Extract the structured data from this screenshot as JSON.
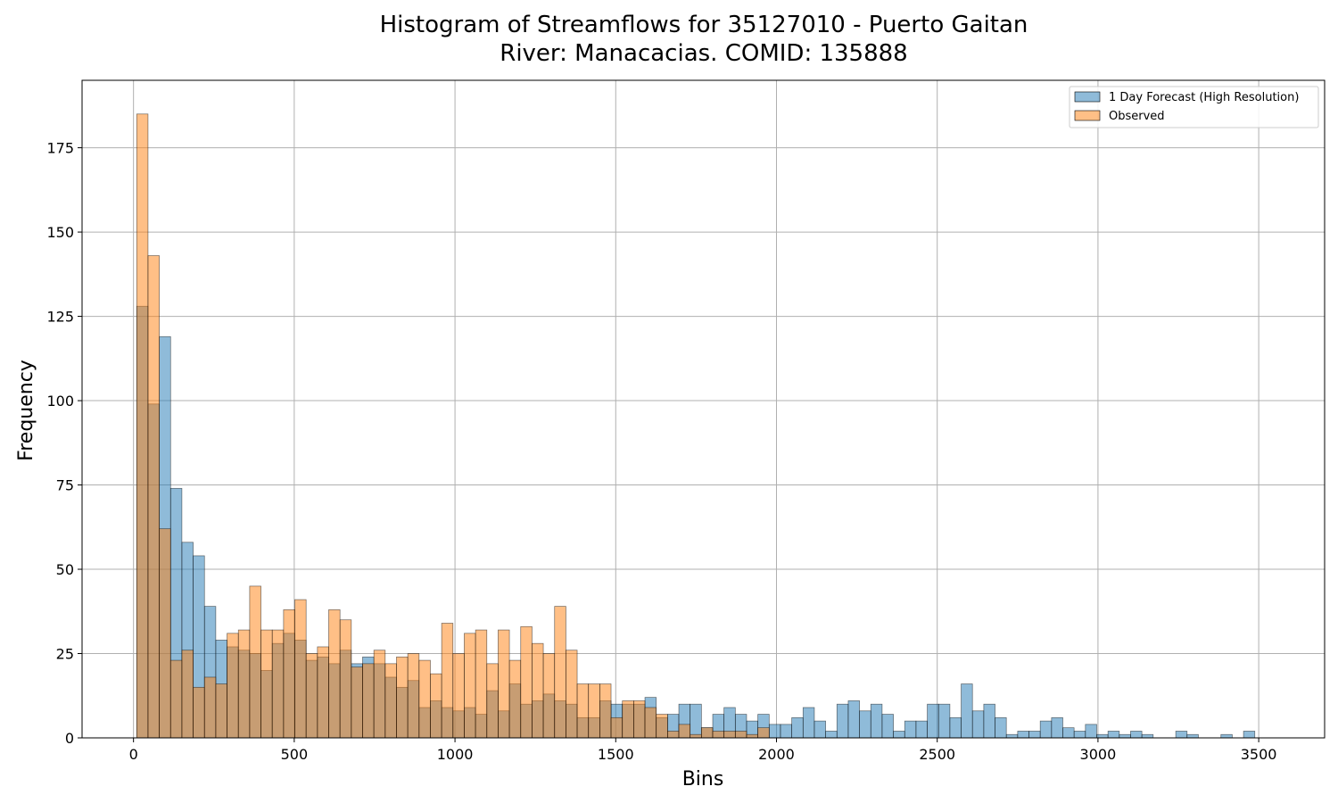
{
  "chart_data": {
    "type": "bar",
    "title": "Histogram of Streamflows for 35127010 - Puerto Gaitan",
    "subtitle": "River: Manacacias. COMID: 135888",
    "xlabel": "Bins",
    "ylabel": "Frequency",
    "xlim": [
      -160,
      3705
    ],
    "ylim": [
      0,
      195
    ],
    "x_ticks": [
      0,
      500,
      1000,
      1500,
      2000,
      2500,
      3000,
      3500
    ],
    "y_ticks": [
      0,
      25,
      50,
      75,
      100,
      125,
      150,
      175
    ],
    "grid": true,
    "legend_position": "top-right",
    "bin_start": 10,
    "bin_width": 35.13,
    "series": [
      {
        "name": "1 Day Forecast (High Resolution)",
        "color": "#1f77b4",
        "values": [
          128,
          99,
          119,
          74,
          58,
          54,
          39,
          29,
          27,
          26,
          25,
          20,
          28,
          31,
          29,
          23,
          24,
          22,
          26,
          22,
          24,
          22,
          18,
          15,
          17,
          9,
          11,
          9,
          8,
          9,
          7,
          14,
          8,
          16,
          10,
          11,
          13,
          11,
          10,
          6,
          6,
          11,
          10,
          10,
          10,
          12,
          6,
          7,
          10,
          10,
          3,
          7,
          9,
          7,
          5,
          7,
          4,
          4,
          6,
          9,
          5,
          2,
          10,
          11,
          8,
          10,
          7,
          2,
          5,
          5,
          10,
          10,
          6,
          16,
          8,
          10,
          6,
          1,
          2,
          2,
          5,
          6,
          3,
          2,
          4,
          1,
          2,
          1,
          2,
          1,
          0,
          0,
          2,
          1,
          0,
          0,
          1,
          0,
          2
        ]
      },
      {
        "name": "Observed",
        "color": "#ff7f0e",
        "values": [
          185,
          143,
          62,
          23,
          26,
          15,
          18,
          16,
          31,
          32,
          45,
          32,
          32,
          38,
          41,
          25,
          27,
          38,
          35,
          21,
          22,
          26,
          22,
          24,
          25,
          23,
          19,
          34,
          25,
          31,
          32,
          22,
          32,
          23,
          33,
          28,
          25,
          39,
          26,
          16,
          16,
          16,
          6,
          11,
          11,
          9,
          7,
          2,
          4,
          1,
          3,
          2,
          2,
          2,
          1,
          3,
          0,
          0,
          0,
          0,
          0,
          0,
          0,
          0,
          0,
          0,
          0,
          0,
          0,
          0,
          0,
          0,
          0,
          0,
          0,
          0,
          0,
          0,
          0,
          0,
          0,
          0,
          0,
          0,
          0,
          0,
          0,
          0,
          0,
          0,
          0,
          0,
          0,
          0,
          0,
          0,
          0,
          0,
          0
        ]
      }
    ]
  }
}
